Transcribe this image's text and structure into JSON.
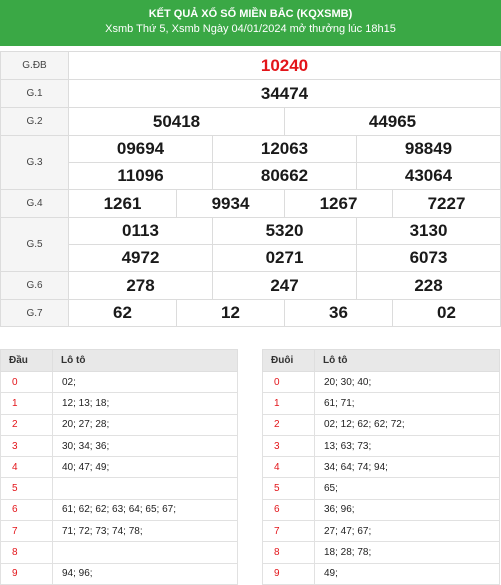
{
  "header": {
    "title": "KẾT QUẢ XỔ SỐ MIỀN BẮC (KQXSMB)",
    "subtitle": "Xsmb Thứ 5, Xsmb Ngày 04/01/2024 mở thưởng lúc 18h15"
  },
  "prizes": {
    "gdb": {
      "label": "G.ĐB",
      "values": [
        "10240"
      ]
    },
    "g1": {
      "label": "G.1",
      "values": [
        "34474"
      ]
    },
    "g2": {
      "label": "G.2",
      "values": [
        "50418",
        "44965"
      ]
    },
    "g3": {
      "label": "G.3",
      "values": [
        "09694",
        "12063",
        "98849",
        "11096",
        "80662",
        "43064"
      ]
    },
    "g4": {
      "label": "G.4",
      "values": [
        "1261",
        "9934",
        "1267",
        "7227"
      ]
    },
    "g5": {
      "label": "G.5",
      "values": [
        "0113",
        "5320",
        "3130",
        "4972",
        "0271",
        "6073"
      ]
    },
    "g6": {
      "label": "G.6",
      "values": [
        "278",
        "247",
        "228"
      ]
    },
    "g7": {
      "label": "G.7",
      "values": [
        "62",
        "12",
        "36",
        "02"
      ]
    }
  },
  "loto_head": {
    "col1": "Đầu",
    "col2": "Lô tô",
    "rows": [
      {
        "k": "0",
        "v": "02;"
      },
      {
        "k": "1",
        "v": "12; 13; 18;"
      },
      {
        "k": "2",
        "v": "20; 27; 28;"
      },
      {
        "k": "3",
        "v": "30; 34; 36;"
      },
      {
        "k": "4",
        "v": "40; 47; 49;"
      },
      {
        "k": "5",
        "v": ""
      },
      {
        "k": "6",
        "v": "61; 62; 62; 63; 64; 65; 67;"
      },
      {
        "k": "7",
        "v": "71; 72; 73; 74; 78;"
      },
      {
        "k": "8",
        "v": ""
      },
      {
        "k": "9",
        "v": "94; 96;"
      }
    ]
  },
  "loto_tail": {
    "col1": "Đuôi",
    "col2": "Lô tô",
    "rows": [
      {
        "k": "0",
        "v": "20; 30; 40;"
      },
      {
        "k": "1",
        "v": "61; 71;"
      },
      {
        "k": "2",
        "v": "02; 12; 62; 62; 72;"
      },
      {
        "k": "3",
        "v": "13; 63; 73;"
      },
      {
        "k": "4",
        "v": "34; 64; 74; 94;"
      },
      {
        "k": "5",
        "v": "65;"
      },
      {
        "k": "6",
        "v": "36; 96;"
      },
      {
        "k": "7",
        "v": "27; 47; 67;"
      },
      {
        "k": "8",
        "v": "18; 28; 78;"
      },
      {
        "k": "9",
        "v": "49;"
      }
    ]
  }
}
